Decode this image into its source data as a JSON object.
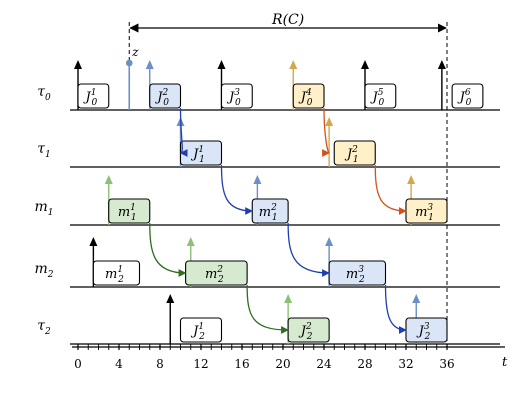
{
  "span_label": "R(C)",
  "z_label": "z",
  "time_axis_label": "t",
  "time_ticks": [
    "0",
    "4",
    "8",
    "12",
    "16",
    "20",
    "24",
    "28",
    "32",
    "36"
  ],
  "rows": [
    {
      "id": "tau0",
      "main": "τ",
      "sub": "0"
    },
    {
      "id": "tau1",
      "main": "τ",
      "sub": "1"
    },
    {
      "id": "m1",
      "main": "m",
      "sub": "1"
    },
    {
      "id": "m2",
      "main": "m",
      "sub": "2"
    },
    {
      "id": "tau2",
      "main": "τ",
      "sub": "2"
    }
  ],
  "jobs": [
    {
      "row": "tau0",
      "main": "J",
      "sub": "0",
      "sup": "1",
      "start": 0,
      "end": 3,
      "color": "white"
    },
    {
      "row": "tau0",
      "main": "J",
      "sub": "0",
      "sup": "2",
      "start": 7,
      "end": 10,
      "color": "blue"
    },
    {
      "row": "tau0",
      "main": "J",
      "sub": "0",
      "sup": "3",
      "start": 14,
      "end": 17,
      "color": "white"
    },
    {
      "row": "tau0",
      "main": "J",
      "sub": "0",
      "sup": "4",
      "start": 21,
      "end": 24,
      "color": "orange"
    },
    {
      "row": "tau0",
      "main": "J",
      "sub": "0",
      "sup": "5",
      "start": 28,
      "end": 31,
      "color": "white"
    },
    {
      "row": "tau0",
      "main": "J",
      "sub": "0",
      "sup": "6",
      "start": 36.5,
      "end": 39.5,
      "color": "white"
    },
    {
      "row": "tau1",
      "main": "J",
      "sub": "1",
      "sup": "1",
      "start": 10,
      "end": 14,
      "color": "blue"
    },
    {
      "row": "tau1",
      "main": "J",
      "sub": "1",
      "sup": "2",
      "start": 25,
      "end": 29,
      "color": "orange"
    },
    {
      "row": "m1",
      "main": "m",
      "sub": "1",
      "sup": "1",
      "start": 3,
      "end": 7,
      "color": "green"
    },
    {
      "row": "m1",
      "main": "m",
      "sub": "1",
      "sup": "2",
      "start": 17,
      "end": 20.5,
      "color": "blue"
    },
    {
      "row": "m1",
      "main": "m",
      "sub": "1",
      "sup": "3",
      "start": 32,
      "end": 36,
      "color": "orange"
    },
    {
      "row": "m2",
      "main": "m",
      "sub": "2",
      "sup": "1",
      "start": 1.5,
      "end": 6,
      "color": "white"
    },
    {
      "row": "m2",
      "main": "m",
      "sub": "2",
      "sup": "2",
      "start": 10.5,
      "end": 16.5,
      "color": "green"
    },
    {
      "row": "m2",
      "main": "m",
      "sub": "2",
      "sup": "3",
      "start": 24.5,
      "end": 30,
      "color": "blue"
    },
    {
      "row": "tau2",
      "main": "J",
      "sub": "2",
      "sup": "1",
      "start": 10,
      "end": 14,
      "color": "white"
    },
    {
      "row": "tau2",
      "main": "J",
      "sub": "2",
      "sup": "2",
      "start": 20.5,
      "end": 24.5,
      "color": "green"
    },
    {
      "row": "tau2",
      "main": "J",
      "sub": "2",
      "sup": "3",
      "start": 32,
      "end": 36,
      "color": "blue"
    }
  ],
  "releases": [
    {
      "row": "tau0",
      "t": 0,
      "color": "black"
    },
    {
      "row": "tau0",
      "t": 7,
      "color": "blue"
    },
    {
      "row": "tau0",
      "t": 14,
      "color": "black"
    },
    {
      "row": "tau0",
      "t": 21,
      "color": "orange"
    },
    {
      "row": "tau0",
      "t": 28,
      "color": "black"
    },
    {
      "row": "tau0",
      "t": 35.5,
      "color": "black"
    },
    {
      "row": "tau1",
      "t": 10,
      "color": "blue"
    },
    {
      "row": "tau1",
      "t": 24.5,
      "color": "orange"
    },
    {
      "row": "m1",
      "t": 3,
      "color": "green"
    },
    {
      "row": "m1",
      "t": 17.5,
      "color": "blue"
    },
    {
      "row": "m1",
      "t": 32.5,
      "color": "orange"
    },
    {
      "row": "m2",
      "t": 1.5,
      "color": "black"
    },
    {
      "row": "m2",
      "t": 11,
      "color": "green"
    },
    {
      "row": "m2",
      "t": 24.5,
      "color": "blue"
    },
    {
      "row": "tau2",
      "t": 9,
      "color": "black"
    },
    {
      "row": "tau2",
      "t": 20.5,
      "color": "green"
    },
    {
      "row": "tau2",
      "t": 33,
      "color": "blue"
    }
  ],
  "z_time": 5,
  "span_start": 5,
  "span_end": 36,
  "links": [
    {
      "from": [
        "tau0",
        10
      ],
      "to": [
        "tau1",
        10
      ],
      "color": "blue"
    },
    {
      "from": [
        "tau1",
        14
      ],
      "to": [
        "m1",
        17
      ],
      "color": "blue"
    },
    {
      "from": [
        "m1",
        20.5
      ],
      "to": [
        "m2",
        24.5
      ],
      "color": "blue"
    },
    {
      "from": [
        "m2",
        30
      ],
      "to": [
        "tau2",
        32
      ],
      "color": "blue"
    },
    {
      "from": [
        "m1",
        7
      ],
      "to": [
        "m2",
        10.5
      ],
      "color": "green"
    },
    {
      "from": [
        "m2",
        16.5
      ],
      "to": [
        "tau2",
        20.5
      ],
      "color": "green"
    },
    {
      "from": [
        "tau0",
        24
      ],
      "to": [
        "tau1",
        24.5
      ],
      "color": "orange"
    },
    {
      "from": [
        "tau1",
        29
      ],
      "to": [
        "m1",
        32
      ],
      "color": "orange"
    }
  ],
  "colors": {
    "white": {
      "fill": "#ffffff",
      "stroke": "#000000"
    },
    "blue": {
      "fill": "#dae6f8",
      "stroke": "#000000"
    },
    "orange": {
      "fill": "#fff0c8",
      "stroke": "#000000"
    },
    "green": {
      "fill": "#d6ead0",
      "stroke": "#000000"
    },
    "arrow_blue": "#1f3fb0",
    "arrow_green": "#2e6e1e",
    "arrow_orange": "#d2521a",
    "release_blue": "#6b8fc8",
    "release_orange": "#d4a84a",
    "release_green": "#8fbe78",
    "z_color": "#6b8fc8"
  }
}
